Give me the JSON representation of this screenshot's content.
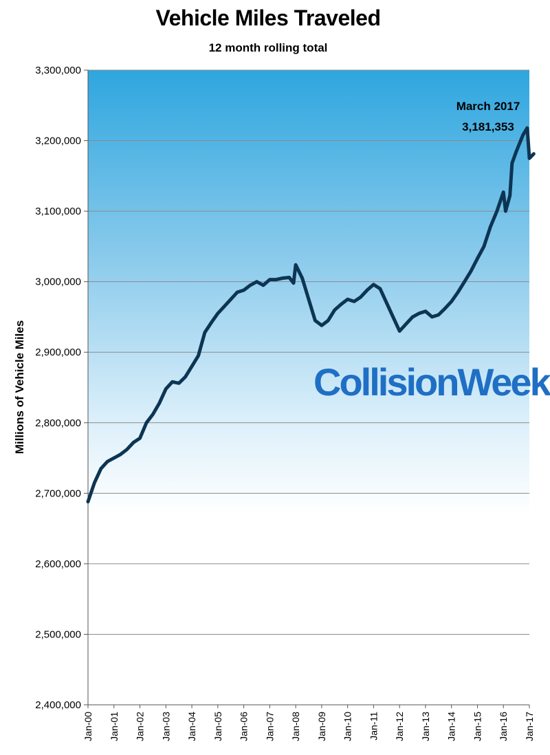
{
  "chart_data": {
    "type": "line",
    "title": "Vehicle Miles Traveled",
    "subtitle": "12 month rolling total",
    "ylabel": "Millions of Vehicle Miles",
    "xlabel": "",
    "ylim": [
      2400000,
      3300000
    ],
    "yticks": [
      "2,400,000",
      "2,500,000",
      "2,600,000",
      "2,700,000",
      "2,800,000",
      "2,900,000",
      "3,000,000",
      "3,100,000",
      "3,200,000",
      "3,300,000"
    ],
    "xticks": [
      "Jan-00",
      "Jan-01",
      "Jan-02",
      "Jan-03",
      "Jan-04",
      "Jan-05",
      "Jan-06",
      "Jan-07",
      "Jan-08",
      "Jan-09",
      "Jan-10",
      "Jan-11",
      "Jan-12",
      "Jan-13",
      "Jan-14",
      "Jan-15",
      "Jan-16",
      "Jan-17"
    ],
    "grid": true,
    "background": "gradient blue to white",
    "line_color": "#0d3553",
    "series": [
      {
        "points": [
          [
            "Jan-00",
            2688000
          ],
          [
            "Apr-00",
            2715000
          ],
          [
            "Jul-00",
            2735000
          ],
          [
            "Oct-00",
            2745000
          ],
          [
            "Jan-01",
            2750000
          ],
          [
            "Apr-01",
            2755000
          ],
          [
            "Jul-01",
            2762000
          ],
          [
            "Oct-01",
            2772000
          ],
          [
            "Jan-02",
            2778000
          ],
          [
            "Apr-02",
            2800000
          ],
          [
            "Jul-02",
            2812000
          ],
          [
            "Oct-02",
            2828000
          ],
          [
            "Jan-03",
            2848000
          ],
          [
            "Apr-03",
            2858000
          ],
          [
            "Jul-03",
            2856000
          ],
          [
            "Oct-03",
            2865000
          ],
          [
            "Jan-04",
            2880000
          ],
          [
            "Apr-04",
            2895000
          ],
          [
            "Jul-04",
            2928000
          ],
          [
            "Oct-04",
            2942000
          ],
          [
            "Jan-05",
            2955000
          ],
          [
            "Apr-05",
            2965000
          ],
          [
            "Jul-05",
            2975000
          ],
          [
            "Oct-05",
            2985000
          ],
          [
            "Jan-06",
            2988000
          ],
          [
            "Apr-06",
            2995000
          ],
          [
            "Jul-06",
            3000000
          ],
          [
            "Oct-06",
            2995000
          ],
          [
            "Jan-07",
            3003000
          ],
          [
            "Apr-07",
            3003000
          ],
          [
            "Jul-07",
            3005000
          ],
          [
            "Oct-07",
            3006000
          ],
          [
            "Dec-07",
            2998000
          ],
          [
            "Jan-08",
            3024000
          ],
          [
            "Apr-08",
            3005000
          ],
          [
            "Jul-08",
            2975000
          ],
          [
            "Oct-08",
            2945000
          ],
          [
            "Jan-09",
            2938000
          ],
          [
            "Apr-09",
            2945000
          ],
          [
            "Jul-09",
            2960000
          ],
          [
            "Oct-09",
            2968000
          ],
          [
            "Jan-10",
            2975000
          ],
          [
            "Apr-10",
            2972000
          ],
          [
            "Jul-10",
            2978000
          ],
          [
            "Oct-10",
            2988000
          ],
          [
            "Jan-11",
            2996000
          ],
          [
            "Apr-11",
            2990000
          ],
          [
            "Jul-11",
            2970000
          ],
          [
            "Oct-11",
            2950000
          ],
          [
            "Jan-12",
            2930000
          ],
          [
            "Apr-12",
            2940000
          ],
          [
            "Jul-12",
            2950000
          ],
          [
            "Oct-12",
            2955000
          ],
          [
            "Jan-13",
            2958000
          ],
          [
            "Apr-13",
            2950000
          ],
          [
            "Jul-13",
            2953000
          ],
          [
            "Oct-13",
            2962000
          ],
          [
            "Jan-14",
            2972000
          ],
          [
            "Apr-14",
            2985000
          ],
          [
            "Jul-14",
            3000000
          ],
          [
            "Oct-14",
            3015000
          ],
          [
            "Jan-15",
            3033000
          ],
          [
            "Apr-15",
            3050000
          ],
          [
            "Jul-15",
            3078000
          ],
          [
            "Oct-15",
            3100000
          ],
          [
            "Jan-16",
            3127000
          ],
          [
            "Feb-16",
            3100000
          ],
          [
            "Apr-16",
            3122000
          ],
          [
            "May-16",
            3168000
          ],
          [
            "Jul-16",
            3185000
          ],
          [
            "Oct-16",
            3208000
          ],
          [
            "Dec-16",
            3218000
          ],
          [
            "Jan-17",
            3175000
          ],
          [
            "Mar-17",
            3181353
          ]
        ]
      }
    ],
    "annotation": {
      "line1": "March 2017",
      "line2": "3,181,353"
    },
    "watermark": "CollisionWeek"
  }
}
